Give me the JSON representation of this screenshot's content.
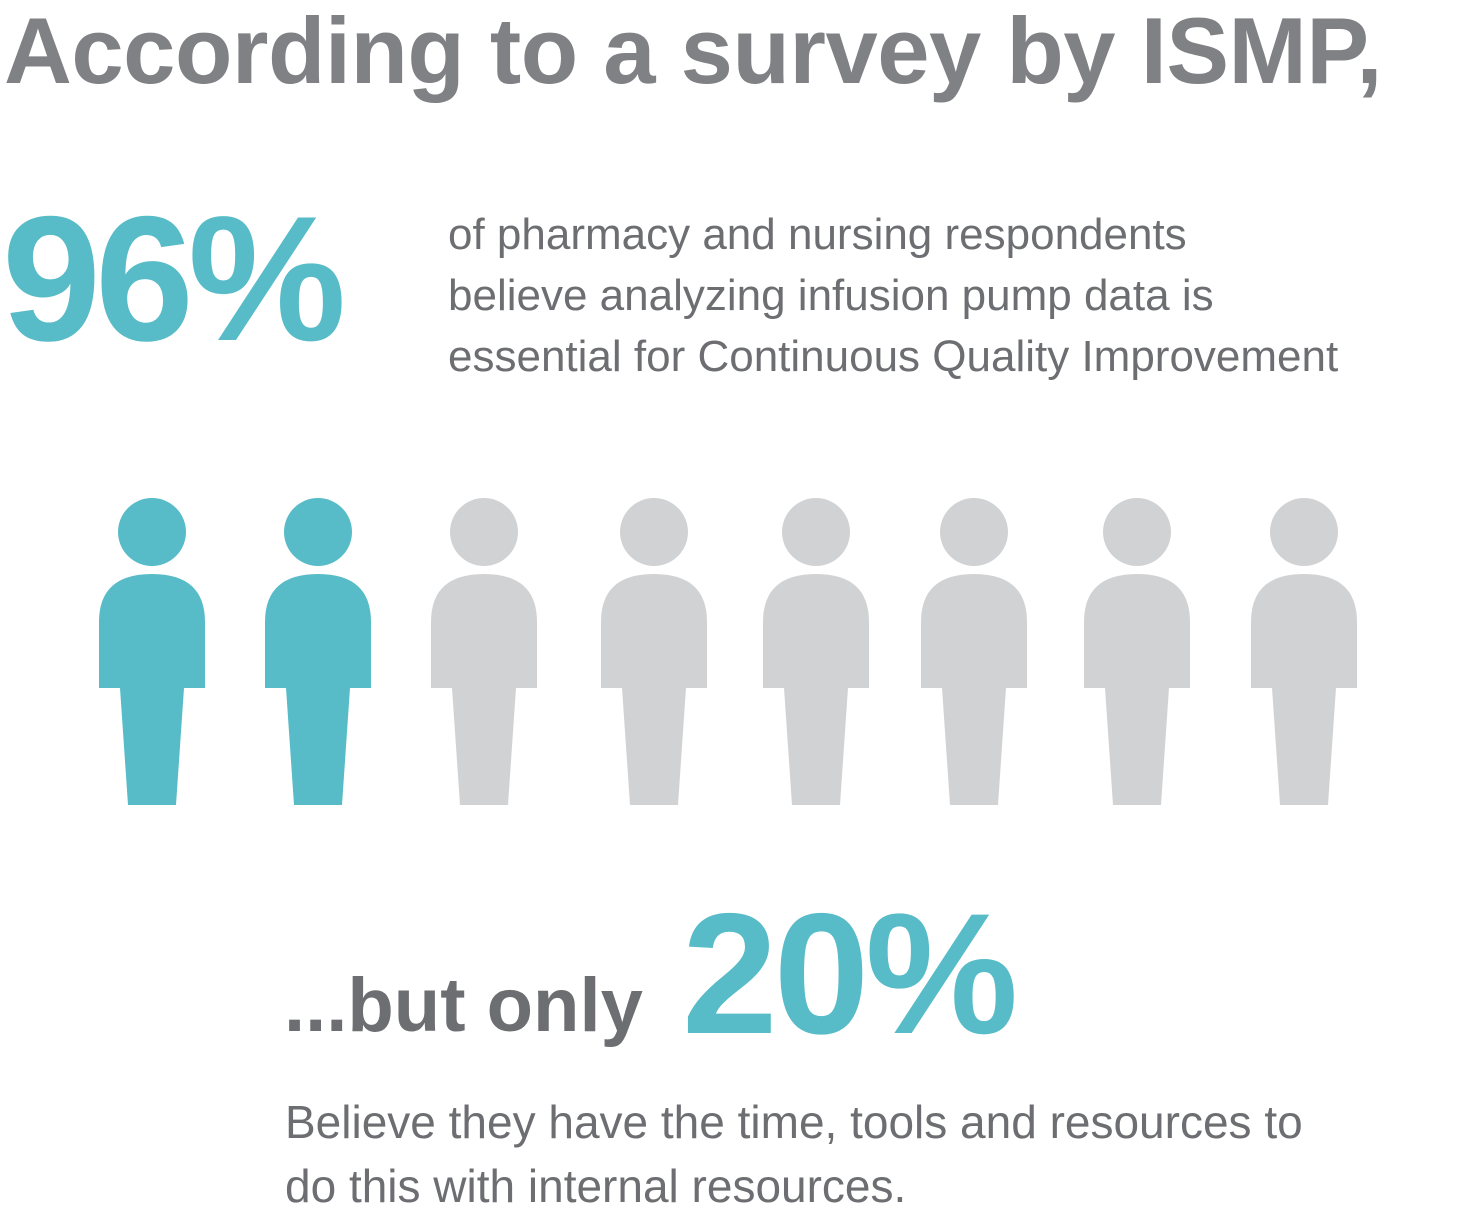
{
  "headline": "According to a survey by ISMP,",
  "stat1": {
    "value": "96%",
    "description_lines": [
      "of pharmacy and nursing respondents",
      "believe analyzing infusion pump data is",
      "essential for Continuous Quality Improvement"
    ]
  },
  "people": {
    "total": 8,
    "highlighted": 2,
    "highlight_color": "#57bcc7",
    "muted_color": "#d1d2d4"
  },
  "stat2": {
    "prefix": "...but only",
    "value": "20%",
    "description_lines": [
      "Believe they have the time, tools and resources to",
      "do this with internal resources."
    ]
  },
  "colors": {
    "accent": "#57bcc7",
    "heading_gray": "#808184",
    "text_gray": "#6d6e71"
  }
}
